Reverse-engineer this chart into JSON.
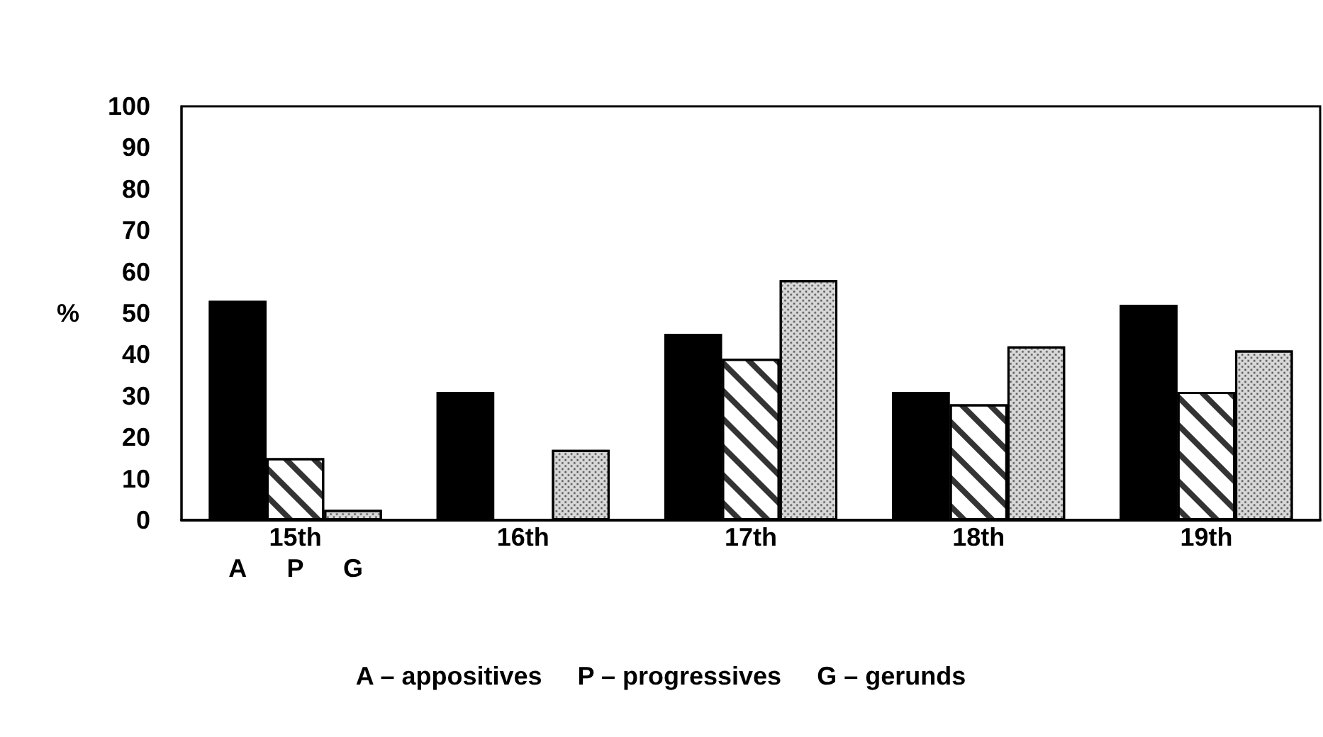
{
  "chart_data": {
    "type": "bar",
    "ylabel": "%",
    "categories": [
      "15th",
      "16th",
      "17th",
      "18th",
      "19th"
    ],
    "series": [
      {
        "name": "A",
        "color": "#000000",
        "values": [
          53,
          31,
          45,
          31,
          52
        ]
      },
      {
        "name": "P",
        "color": "#ffffff",
        "values": [
          15,
          null,
          39,
          28,
          31
        ]
      },
      {
        "name": "G",
        "color": "#d9d9d9",
        "values": [
          2.5,
          17,
          58,
          42,
          41
        ]
      }
    ],
    "ylim": [
      0,
      100
    ],
    "yticks": [
      0,
      10,
      20,
      30,
      40,
      50,
      60,
      70,
      80,
      90,
      100
    ],
    "grid": false,
    "legend": false,
    "annotations": [
      "A – appositives     P – progressives     G – gerunds"
    ]
  }
}
